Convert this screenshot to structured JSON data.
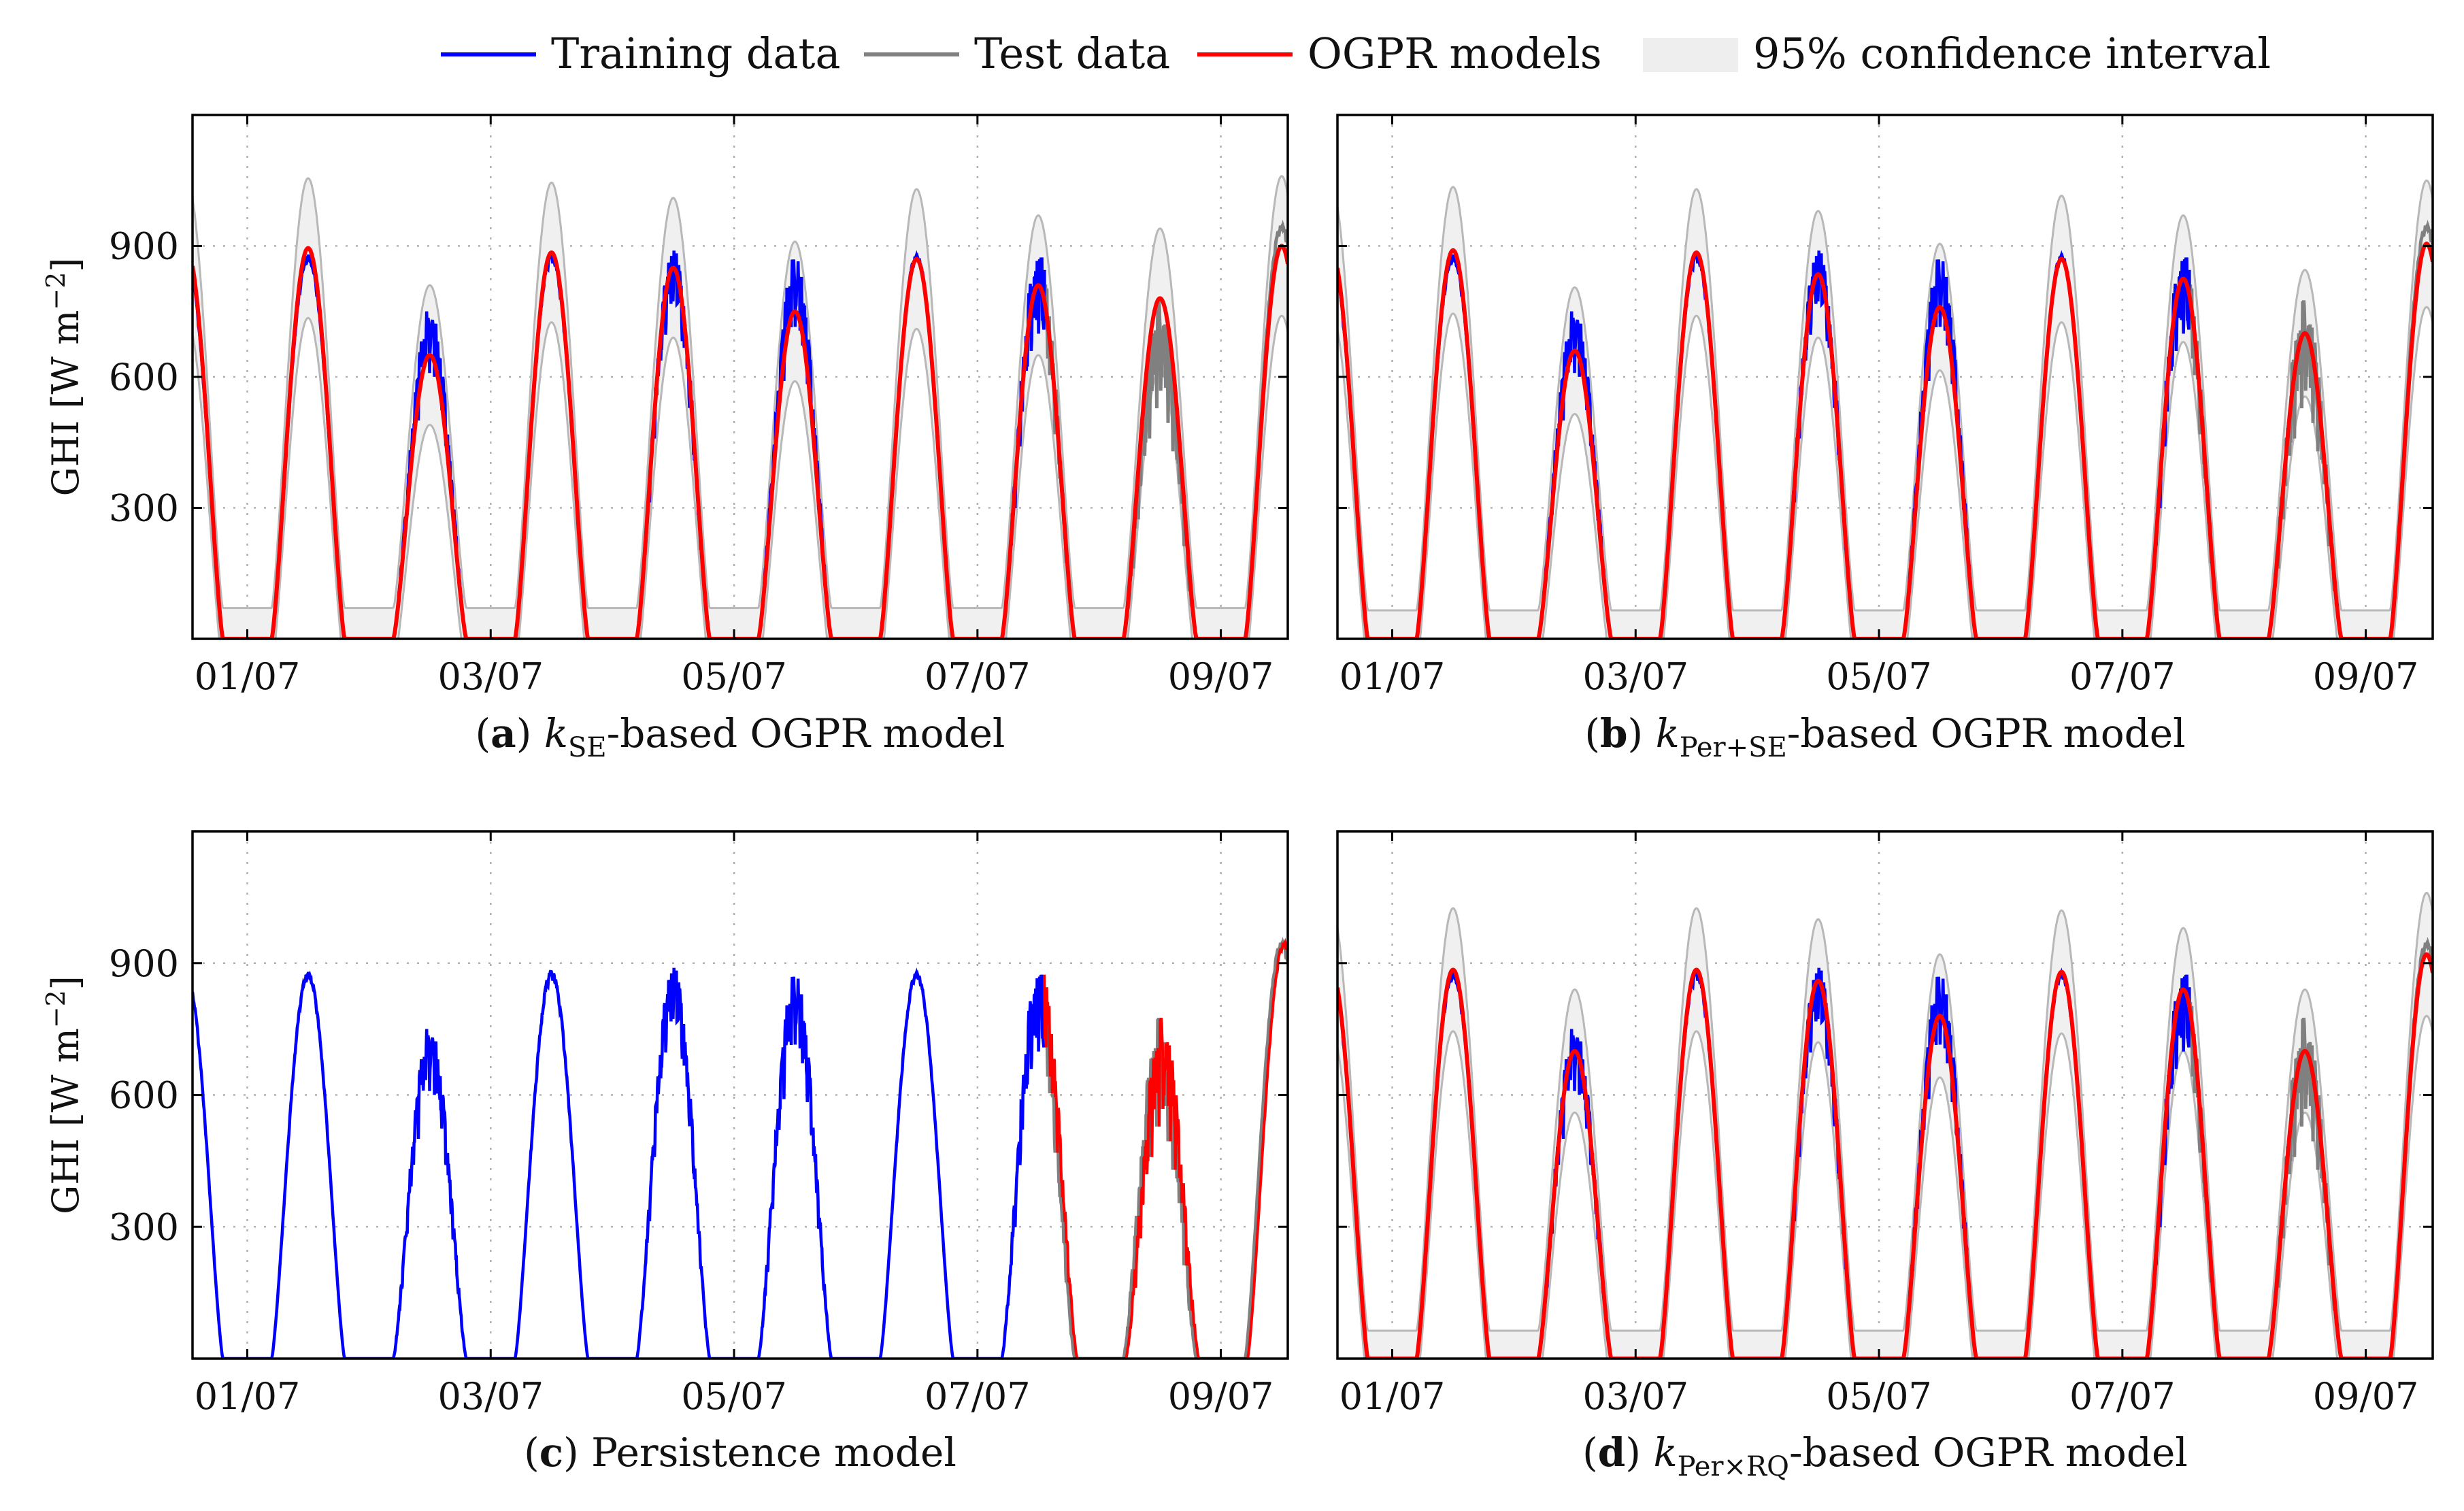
{
  "legend": [
    {
      "label": "Training data",
      "color": "#0000ff",
      "kind": "line"
    },
    {
      "label": "Test data",
      "color": "#808080",
      "kind": "line"
    },
    {
      "label": "OGPR models",
      "color": "#ff0000",
      "kind": "line"
    },
    {
      "label": "95% confidence interval",
      "color": "#eeeeee",
      "kind": "area"
    }
  ],
  "colors": {
    "training": "#0000ff",
    "test": "#808080",
    "model": "#ff0000",
    "band_fill": "#f0f0f0",
    "band_edge": "#b8b8b8",
    "grid": "#b0b0b0"
  },
  "chart_data": [
    {
      "id": "a",
      "type": "line",
      "caption_letter": "(a)",
      "caption_parts": [
        "k",
        "SE",
        "-based OGPR model"
      ],
      "ylabel": "GHI [W m",
      "ylabel_sup": "−2",
      "ylabel_close": "]",
      "x_ticks": [
        "01/07",
        "03/07",
        "05/07",
        "07/07",
        "09/07"
      ],
      "x_tick_days": [
        1,
        3,
        5,
        7,
        9
      ],
      "y_ticks": [
        300,
        600,
        900
      ],
      "xlim": [
        0.55,
        9.55
      ],
      "ylim": [
        0,
        1200
      ],
      "training_range_days": [
        0.55,
        7.55
      ],
      "test_range_days": [
        7.55,
        9.55
      ],
      "daily_peaks": [
        880,
        760,
        885,
        895,
        880,
        880,
        890,
        780,
        950
      ],
      "model_peaks": [
        895,
        650,
        885,
        850,
        750,
        870,
        810,
        780,
        900
      ],
      "ci_halfwidth": 140,
      "test_noise": true,
      "series": [
        "Training data",
        "Test data",
        "OGPR models",
        "95% confidence interval"
      ]
    },
    {
      "id": "b",
      "type": "line",
      "caption_letter": "(b)",
      "caption_parts": [
        "k",
        "Per+SE",
        "-based OGPR model"
      ],
      "ylabel": "",
      "ylabel_sup": "",
      "ylabel_close": "",
      "x_ticks": [
        "01/07",
        "03/07",
        "05/07",
        "07/07",
        "09/07"
      ],
      "x_tick_days": [
        1,
        3,
        5,
        7,
        9
      ],
      "y_ticks": [
        300,
        600,
        900
      ],
      "xlim": [
        0.55,
        9.55
      ],
      "ylim": [
        0,
        1200
      ],
      "training_range_days": [
        0.55,
        7.55
      ],
      "test_range_days": [
        7.55,
        9.55
      ],
      "daily_peaks": [
        880,
        760,
        885,
        895,
        880,
        880,
        890,
        780,
        950
      ],
      "model_peaks": [
        890,
        660,
        885,
        835,
        760,
        870,
        825,
        700,
        905
      ],
      "ci_halfwidth": 125,
      "test_noise": true,
      "series": [
        "Training data",
        "Test data",
        "OGPR models",
        "95% confidence interval"
      ]
    },
    {
      "id": "c",
      "type": "line",
      "caption_letter": "(c)",
      "caption_parts": [
        "Persistence model",
        "",
        ""
      ],
      "ylabel": "GHI [W m",
      "ylabel_sup": "−2",
      "ylabel_close": "]",
      "x_ticks": [
        "01/07",
        "03/07",
        "05/07",
        "07/07",
        "09/07"
      ],
      "x_tick_days": [
        1,
        3,
        5,
        7,
        9
      ],
      "y_ticks": [
        300,
        600,
        900
      ],
      "xlim": [
        0.55,
        9.55
      ],
      "ylim": [
        0,
        1200
      ],
      "training_range_days": [
        0.55,
        7.55
      ],
      "test_range_days": [
        7.55,
        9.55
      ],
      "daily_peaks": [
        880,
        760,
        885,
        895,
        880,
        880,
        890,
        780,
        950
      ],
      "model_peaks": [
        880,
        760,
        885,
        895,
        880,
        880,
        890,
        780,
        950
      ],
      "ci_halfwidth": 0,
      "test_noise": false,
      "series": [
        "Training data",
        "Test data",
        "OGPR models"
      ]
    },
    {
      "id": "d",
      "type": "line",
      "caption_letter": "(d)",
      "caption_parts": [
        "k",
        "Per×RQ",
        "-based OGPR model"
      ],
      "ylabel": "",
      "ylabel_sup": "",
      "ylabel_close": "",
      "x_ticks": [
        "01/07",
        "03/07",
        "05/07",
        "07/07",
        "09/07"
      ],
      "x_tick_days": [
        1,
        3,
        5,
        7,
        9
      ],
      "y_ticks": [
        300,
        600,
        900
      ],
      "xlim": [
        0.55,
        9.55
      ],
      "ylim": [
        0,
        1200
      ],
      "training_range_days": [
        0.55,
        7.55
      ],
      "test_range_days": [
        7.55,
        9.55
      ],
      "daily_peaks": [
        880,
        760,
        885,
        895,
        880,
        880,
        890,
        780,
        950
      ],
      "model_peaks": [
        885,
        700,
        885,
        860,
        780,
        880,
        840,
        700,
        920
      ],
      "ci_halfwidth": 120,
      "test_noise": true,
      "series": [
        "Training data",
        "Test data",
        "OGPR models",
        "95% confidence interval"
      ]
    }
  ]
}
